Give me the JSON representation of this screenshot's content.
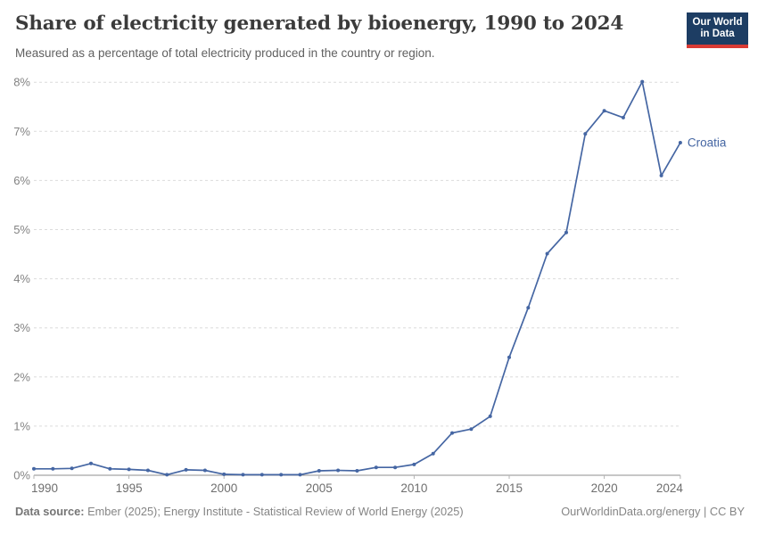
{
  "header": {
    "title": "Share of electricity generated by bioenergy, 1990 to 2024",
    "subtitle": "Measured as a percentage of total electricity produced in the country or region."
  },
  "logo": {
    "line1": "Our World",
    "line2": "in Data",
    "bg_color": "#1d3d63",
    "accent_color": "#d93a34"
  },
  "chart_data": {
    "type": "line",
    "title": "Share of electricity generated by bioenergy, 1990 to 2024",
    "xlabel": "",
    "ylabel": "",
    "x": [
      1990,
      1991,
      1992,
      1993,
      1994,
      1995,
      1996,
      1997,
      1998,
      1999,
      2000,
      2001,
      2002,
      2003,
      2004,
      2005,
      2006,
      2007,
      2008,
      2009,
      2010,
      2011,
      2012,
      2013,
      2014,
      2015,
      2016,
      2017,
      2018,
      2019,
      2020,
      2021,
      2022,
      2023,
      2024
    ],
    "series": [
      {
        "name": "Croatia",
        "color": "#4566a3",
        "values": [
          0.13,
          0.13,
          0.14,
          0.24,
          0.13,
          0.12,
          0.1,
          0.01,
          0.11,
          0.1,
          0.02,
          0.01,
          0.01,
          0.01,
          0.01,
          0.09,
          0.1,
          0.09,
          0.16,
          0.16,
          0.22,
          0.44,
          0.86,
          0.94,
          1.2,
          2.4,
          3.41,
          4.51,
          4.94,
          6.95,
          7.42,
          7.28,
          8.01,
          6.1,
          6.77
        ]
      }
    ],
    "xlim": [
      1990,
      2024
    ],
    "ylim": [
      0,
      8
    ],
    "yticks": [
      0,
      1,
      2,
      3,
      4,
      5,
      6,
      7,
      8
    ],
    "ytick_format": "{v}%",
    "xticks": [
      1990,
      1995,
      2000,
      2005,
      2010,
      2015,
      2020,
      2024
    ],
    "grid": "horizontal-dashed",
    "legend": "end-of-line-label",
    "grid_color": "#dcdcdc",
    "axis_color": "#8f8f8f",
    "tick_color": "#b3b3b3"
  },
  "footer": {
    "datasource_label": "Data source:",
    "datasource_rest": " Ember (2025); Energy Institute - Statistical Review of World Energy (2025)",
    "credit": "OurWorldinData.org/energy | CC BY"
  }
}
